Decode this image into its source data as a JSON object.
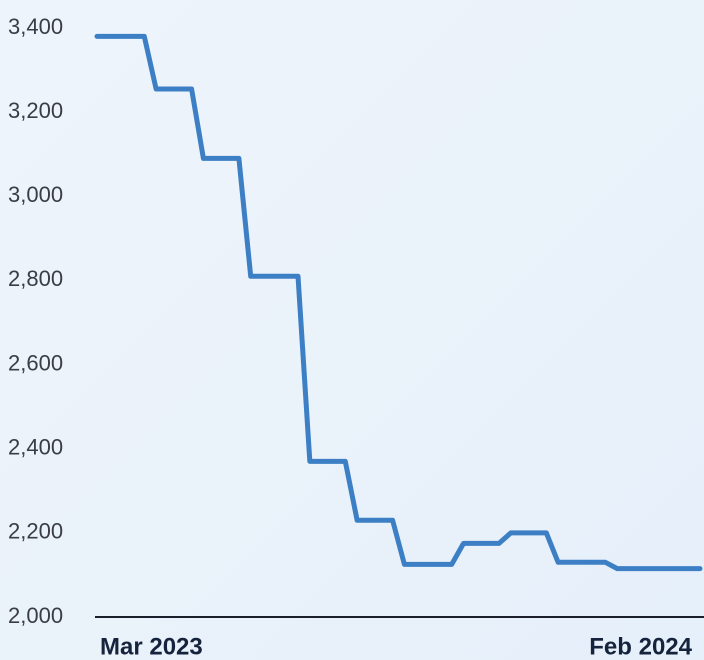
{
  "chart_data": {
    "type": "line",
    "categories": [
      "Mar 2023",
      null,
      null,
      null,
      null,
      null,
      null,
      null,
      null,
      null,
      null,
      null,
      null,
      null,
      null,
      null,
      null,
      null,
      null,
      null,
      null,
      null,
      null,
      null,
      null,
      null,
      null,
      null,
      null,
      null,
      null,
      null,
      null,
      null,
      null,
      null,
      null,
      null,
      null,
      null,
      null,
      null,
      null,
      null,
      null,
      null,
      null,
      null,
      null,
      null,
      null,
      "Feb 2024"
    ],
    "series": [
      {
        "color": "#3d7fc5",
        "values": [
          3380,
          3380,
          3380,
          3380,
          3380,
          3255,
          3255,
          3255,
          3255,
          3090,
          3090,
          3090,
          3090,
          2810,
          2810,
          2810,
          2810,
          2810,
          2370,
          2370,
          2370,
          2370,
          2230,
          2230,
          2230,
          2230,
          2125,
          2125,
          2125,
          2125,
          2125,
          2175,
          2175,
          2175,
          2175,
          2200,
          2200,
          2200,
          2200,
          2130,
          2130,
          2130,
          2130,
          2130,
          2115,
          2115,
          2115,
          2115,
          2115,
          2115,
          2115,
          2115
        ]
      }
    ],
    "ylim": [
      2000,
      3400
    ],
    "yticks": [
      {
        "value": 2000,
        "label": "2,000"
      },
      {
        "value": 2200,
        "label": "2,200"
      },
      {
        "value": 2400,
        "label": "2,400"
      },
      {
        "value": 2600,
        "label": "2,600"
      },
      {
        "value": 2800,
        "label": "2,800"
      },
      {
        "value": 3000,
        "label": "3,000"
      },
      {
        "value": 3200,
        "label": "3,200"
      },
      {
        "value": 3400,
        "label": "3,400"
      }
    ],
    "grid": false
  }
}
